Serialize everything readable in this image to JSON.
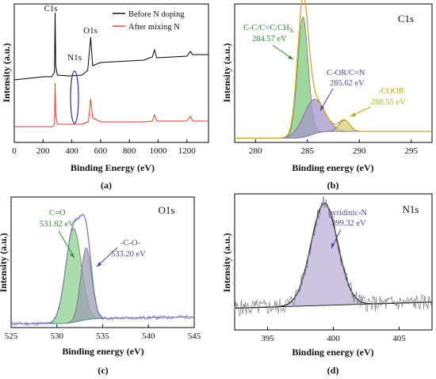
{
  "chart_data": [
    {
      "panel": "(a)",
      "type": "line",
      "xlabel": "Binding Energy (eV)",
      "ylabel": "Intensity (a.u.)",
      "xlim": [
        0,
        1350
      ],
      "xticks": [
        "0",
        "200",
        "400",
        "600",
        "800",
        "1000",
        "1200"
      ],
      "legend": "top-right",
      "grid": false,
      "series": [
        {
          "name": "Before N doping",
          "color": "#000000",
          "points": [
            [
              0,
              96
            ],
            [
              100,
              94
            ],
            [
              200,
              92
            ],
            [
              260,
              92
            ],
            [
              280,
              86
            ],
            [
              284,
              11
            ],
            [
              288,
              78
            ],
            [
              300,
              90
            ],
            [
              380,
              91
            ],
            [
              470,
              90
            ],
            [
              510,
              84
            ],
            [
              531,
              42
            ],
            [
              545,
              78
            ],
            [
              600,
              74
            ],
            [
              700,
              73
            ],
            [
              800,
              72
            ],
            [
              900,
              71
            ],
            [
              960,
              67
            ],
            [
              975,
              58
            ],
            [
              990,
              68
            ],
            [
              1100,
              67
            ],
            [
              1200,
              66
            ],
            [
              1224,
              60
            ],
            [
              1240,
              64
            ],
            [
              1350,
              64
            ]
          ]
        },
        {
          "name": "After mixing N",
          "color": "#e8392f",
          "points": [
            [
              0,
              155
            ],
            [
              100,
              155
            ],
            [
              200,
              155
            ],
            [
              270,
              155
            ],
            [
              280,
              152
            ],
            [
              284,
              100
            ],
            [
              288,
              140
            ],
            [
              300,
              152
            ],
            [
              380,
              152
            ],
            [
              470,
              152
            ],
            [
              515,
              149
            ],
            [
              531,
              120
            ],
            [
              545,
              144
            ],
            [
              600,
              149
            ],
            [
              700,
              149
            ],
            [
              800,
              149
            ],
            [
              900,
              149
            ],
            [
              960,
              148
            ],
            [
              975,
              140
            ],
            [
              990,
              148
            ],
            [
              1100,
              148
            ],
            [
              1200,
              148
            ],
            [
              1224,
              142
            ],
            [
              1240,
              148
            ],
            [
              1350,
              148
            ]
          ]
        }
      ],
      "peak_labels": [
        "C1s",
        "N1s",
        "O1s"
      ],
      "highlight": {
        "label": "N1s",
        "x": 400,
        "shape": "ellipse",
        "color": "#2b2ba8"
      }
    },
    {
      "panel": "(b)",
      "type": "area",
      "title": "C1s",
      "xlabel": "Binding energy (eV)",
      "ylabel": "Intensity (a.u.)",
      "xlim": [
        278,
        297
      ],
      "xticks": [
        "280",
        "285",
        "290",
        "295"
      ],
      "components": [
        {
          "label": "C-C/C=C/CH",
          "label_sub": "X",
          "value_label": "284.57 eV",
          "center": 284.57,
          "height": 0.87,
          "fwhm": 1.2,
          "fill": "#7ecb7e",
          "label_color": "#2e8b2e"
        },
        {
          "label": "C-OR/C=N",
          "value_label": "285.62 eV",
          "center": 285.62,
          "height": 0.25,
          "fwhm": 2.4,
          "fill": "#a796c9",
          "label_color": "#5b3f9b"
        },
        {
          "label": "-COOR",
          "value_label": "288.55 eV",
          "center": 288.55,
          "height": 0.08,
          "fwhm": 1.2,
          "fill": "#d6d276",
          "label_color": "#b8b010"
        }
      ],
      "envelope_color": "#d4a52a"
    },
    {
      "panel": "(c)",
      "type": "area",
      "title": "O1s",
      "xlabel": "Binding energy (eV)",
      "ylabel": "Intensity (a.u.)",
      "xlim": [
        525,
        545
      ],
      "xticks": [
        "525",
        "530",
        "535",
        "540",
        "545"
      ],
      "components": [
        {
          "label": "C=O",
          "value_label": "531.82 eV",
          "center": 531.82,
          "height": 0.72,
          "fwhm": 2.0,
          "fill": "#8fd08f",
          "label_color": "#2e8b2e"
        },
        {
          "label": "-C-O-",
          "value_label": "533.20 eV",
          "center": 533.2,
          "height": 0.55,
          "fwhm": 1.4,
          "fill": "#9aa0b0",
          "label_color": "#5b3f9b"
        }
      ],
      "envelope_color": "#a87fd0"
    },
    {
      "panel": "(d)",
      "type": "area",
      "title": "N1s",
      "xlabel": "Binding energy (eV)",
      "ylabel": "Intensity (a.u.)",
      "xlim": [
        392.5,
        407.5
      ],
      "xticks": [
        "395",
        "400",
        "405"
      ],
      "components": [
        {
          "label": "pyridinic-N",
          "value_label": "399.32 eV",
          "center": 399.32,
          "height": 0.75,
          "fwhm": 2.4,
          "fill": "#bcb0d8",
          "label_color": "#5b3f9b"
        }
      ],
      "envelope_color": "#222222"
    }
  ]
}
